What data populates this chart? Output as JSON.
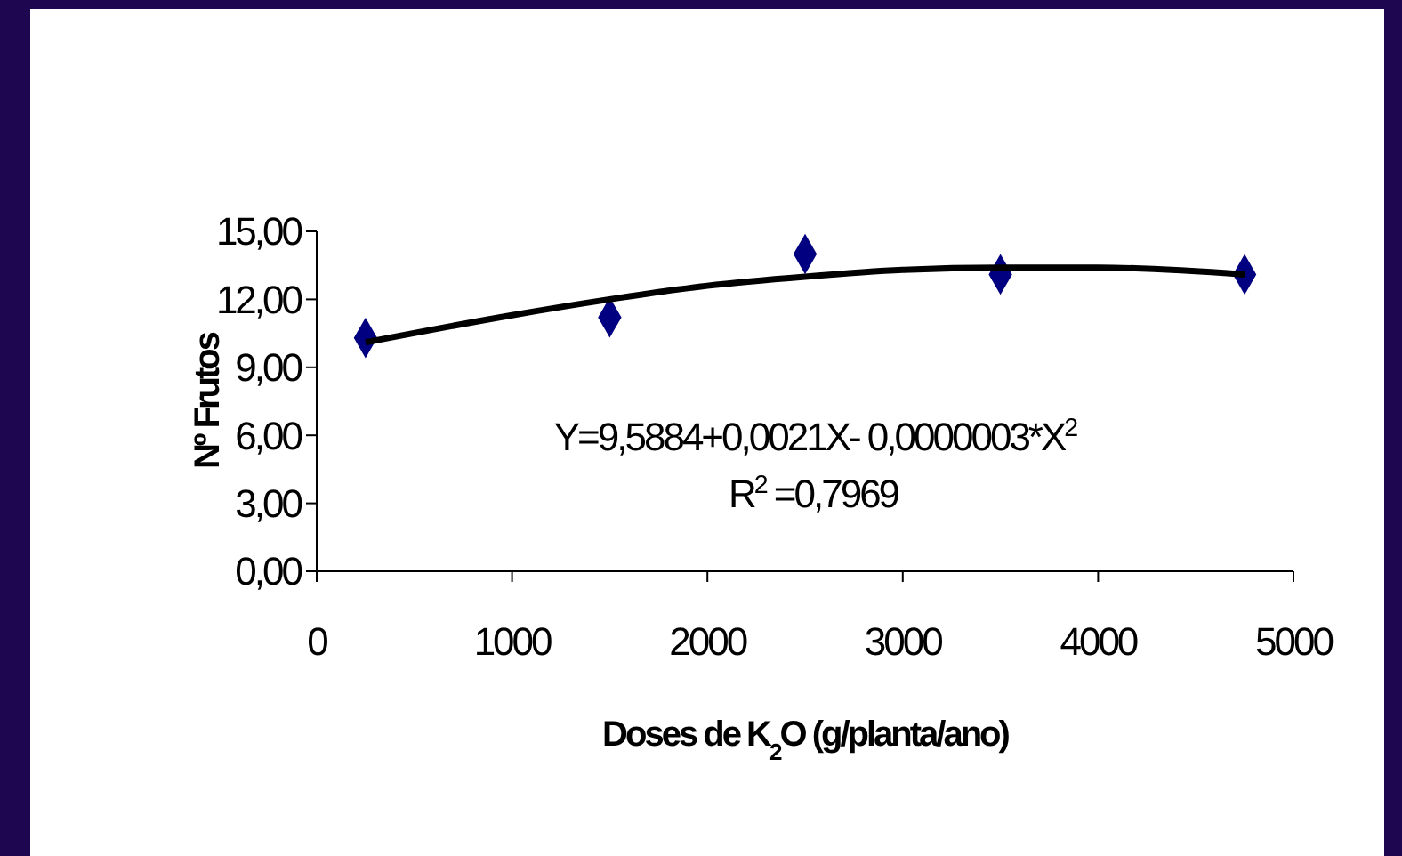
{
  "chart_data": {
    "type": "scatter",
    "xlabel": "Doses de K$_{2}$O (g/planta/ano)",
    "ylabel": "Nº Frutos",
    "xlim": [
      0,
      5000
    ],
    "xticks": [
      0,
      1000,
      2000,
      3000,
      4000,
      5000
    ],
    "ylim": [
      0,
      15
    ],
    "yticks": [
      {
        "value": 0,
        "label": "0,00"
      },
      {
        "value": 3,
        "label": "3,00"
      },
      {
        "value": 6,
        "label": "6,00"
      },
      {
        "value": 9,
        "label": "9,00"
      },
      {
        "value": 12,
        "label": "12,00"
      },
      {
        "value": 15,
        "label": "15,00"
      }
    ],
    "series": [
      {
        "color": "#000080",
        "marker": "diamond",
        "x": [
          250,
          1500,
          2500,
          3500,
          4750
        ],
        "values": [
          10.3,
          11.2,
          14.0,
          13.1,
          13.1
        ]
      },
      {
        "type": "line",
        "color": "#000000",
        "marker": "none",
        "x": [
          250,
          1000,
          1500,
          2000,
          2500,
          3000,
          3500,
          4000,
          4750
        ],
        "values": [
          10.1,
          11.3,
          12.0,
          12.6,
          13.0,
          13.3,
          13.4,
          13.4,
          13.1
        ]
      }
    ],
    "annotations": [
      "Y=9,5884+0,0021X- 0,0000003*X$^{2}$",
      "R$^{2}$ =0,7969"
    ]
  }
}
